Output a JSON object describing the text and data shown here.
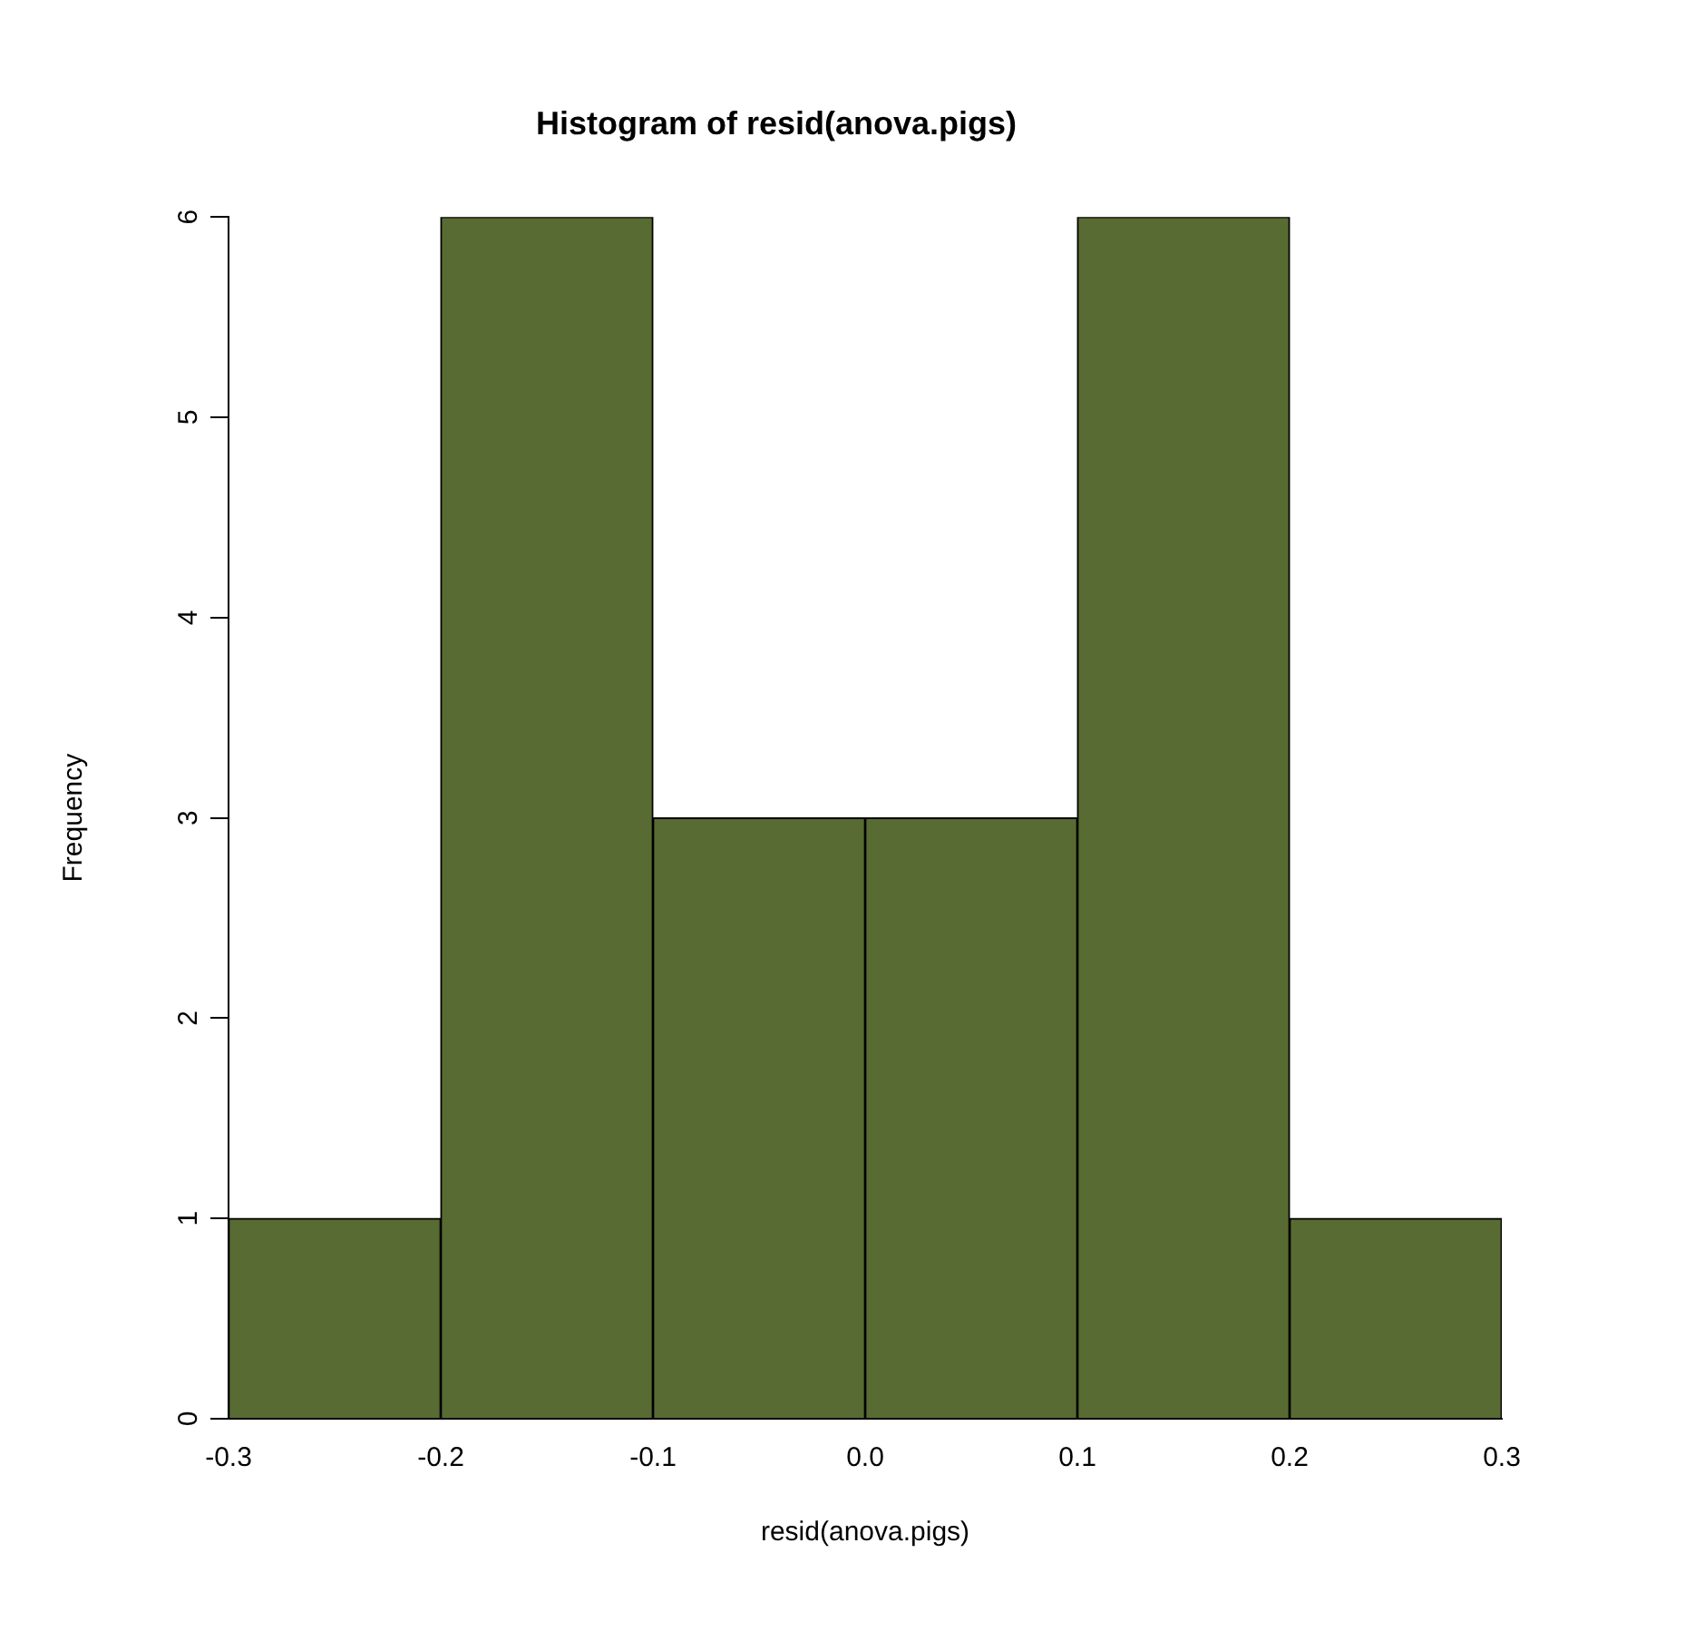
{
  "chart_data": {
    "type": "histogram",
    "title": "Histogram of resid(anova.pigs)",
    "xlabel": "resid(anova.pigs)",
    "ylabel": "Frequency",
    "bins": [
      -0.3,
      -0.2,
      -0.1,
      0,
      0.1,
      0.2,
      0.3
    ],
    "values": [
      1,
      6,
      3,
      3,
      6,
      1
    ],
    "color": "#586b32",
    "xlim": [
      -0.3,
      0.3
    ],
    "xticks": [
      -0.3,
      -0.2,
      -0.1,
      {
        "value": 0,
        "label": "0.0"
      },
      0.1,
      0.2,
      0.3
    ],
    "ylim": [
      0,
      6
    ],
    "yticks": [
      0,
      1,
      2,
      3,
      4,
      5,
      6
    ],
    "grid": false,
    "legend": false
  }
}
